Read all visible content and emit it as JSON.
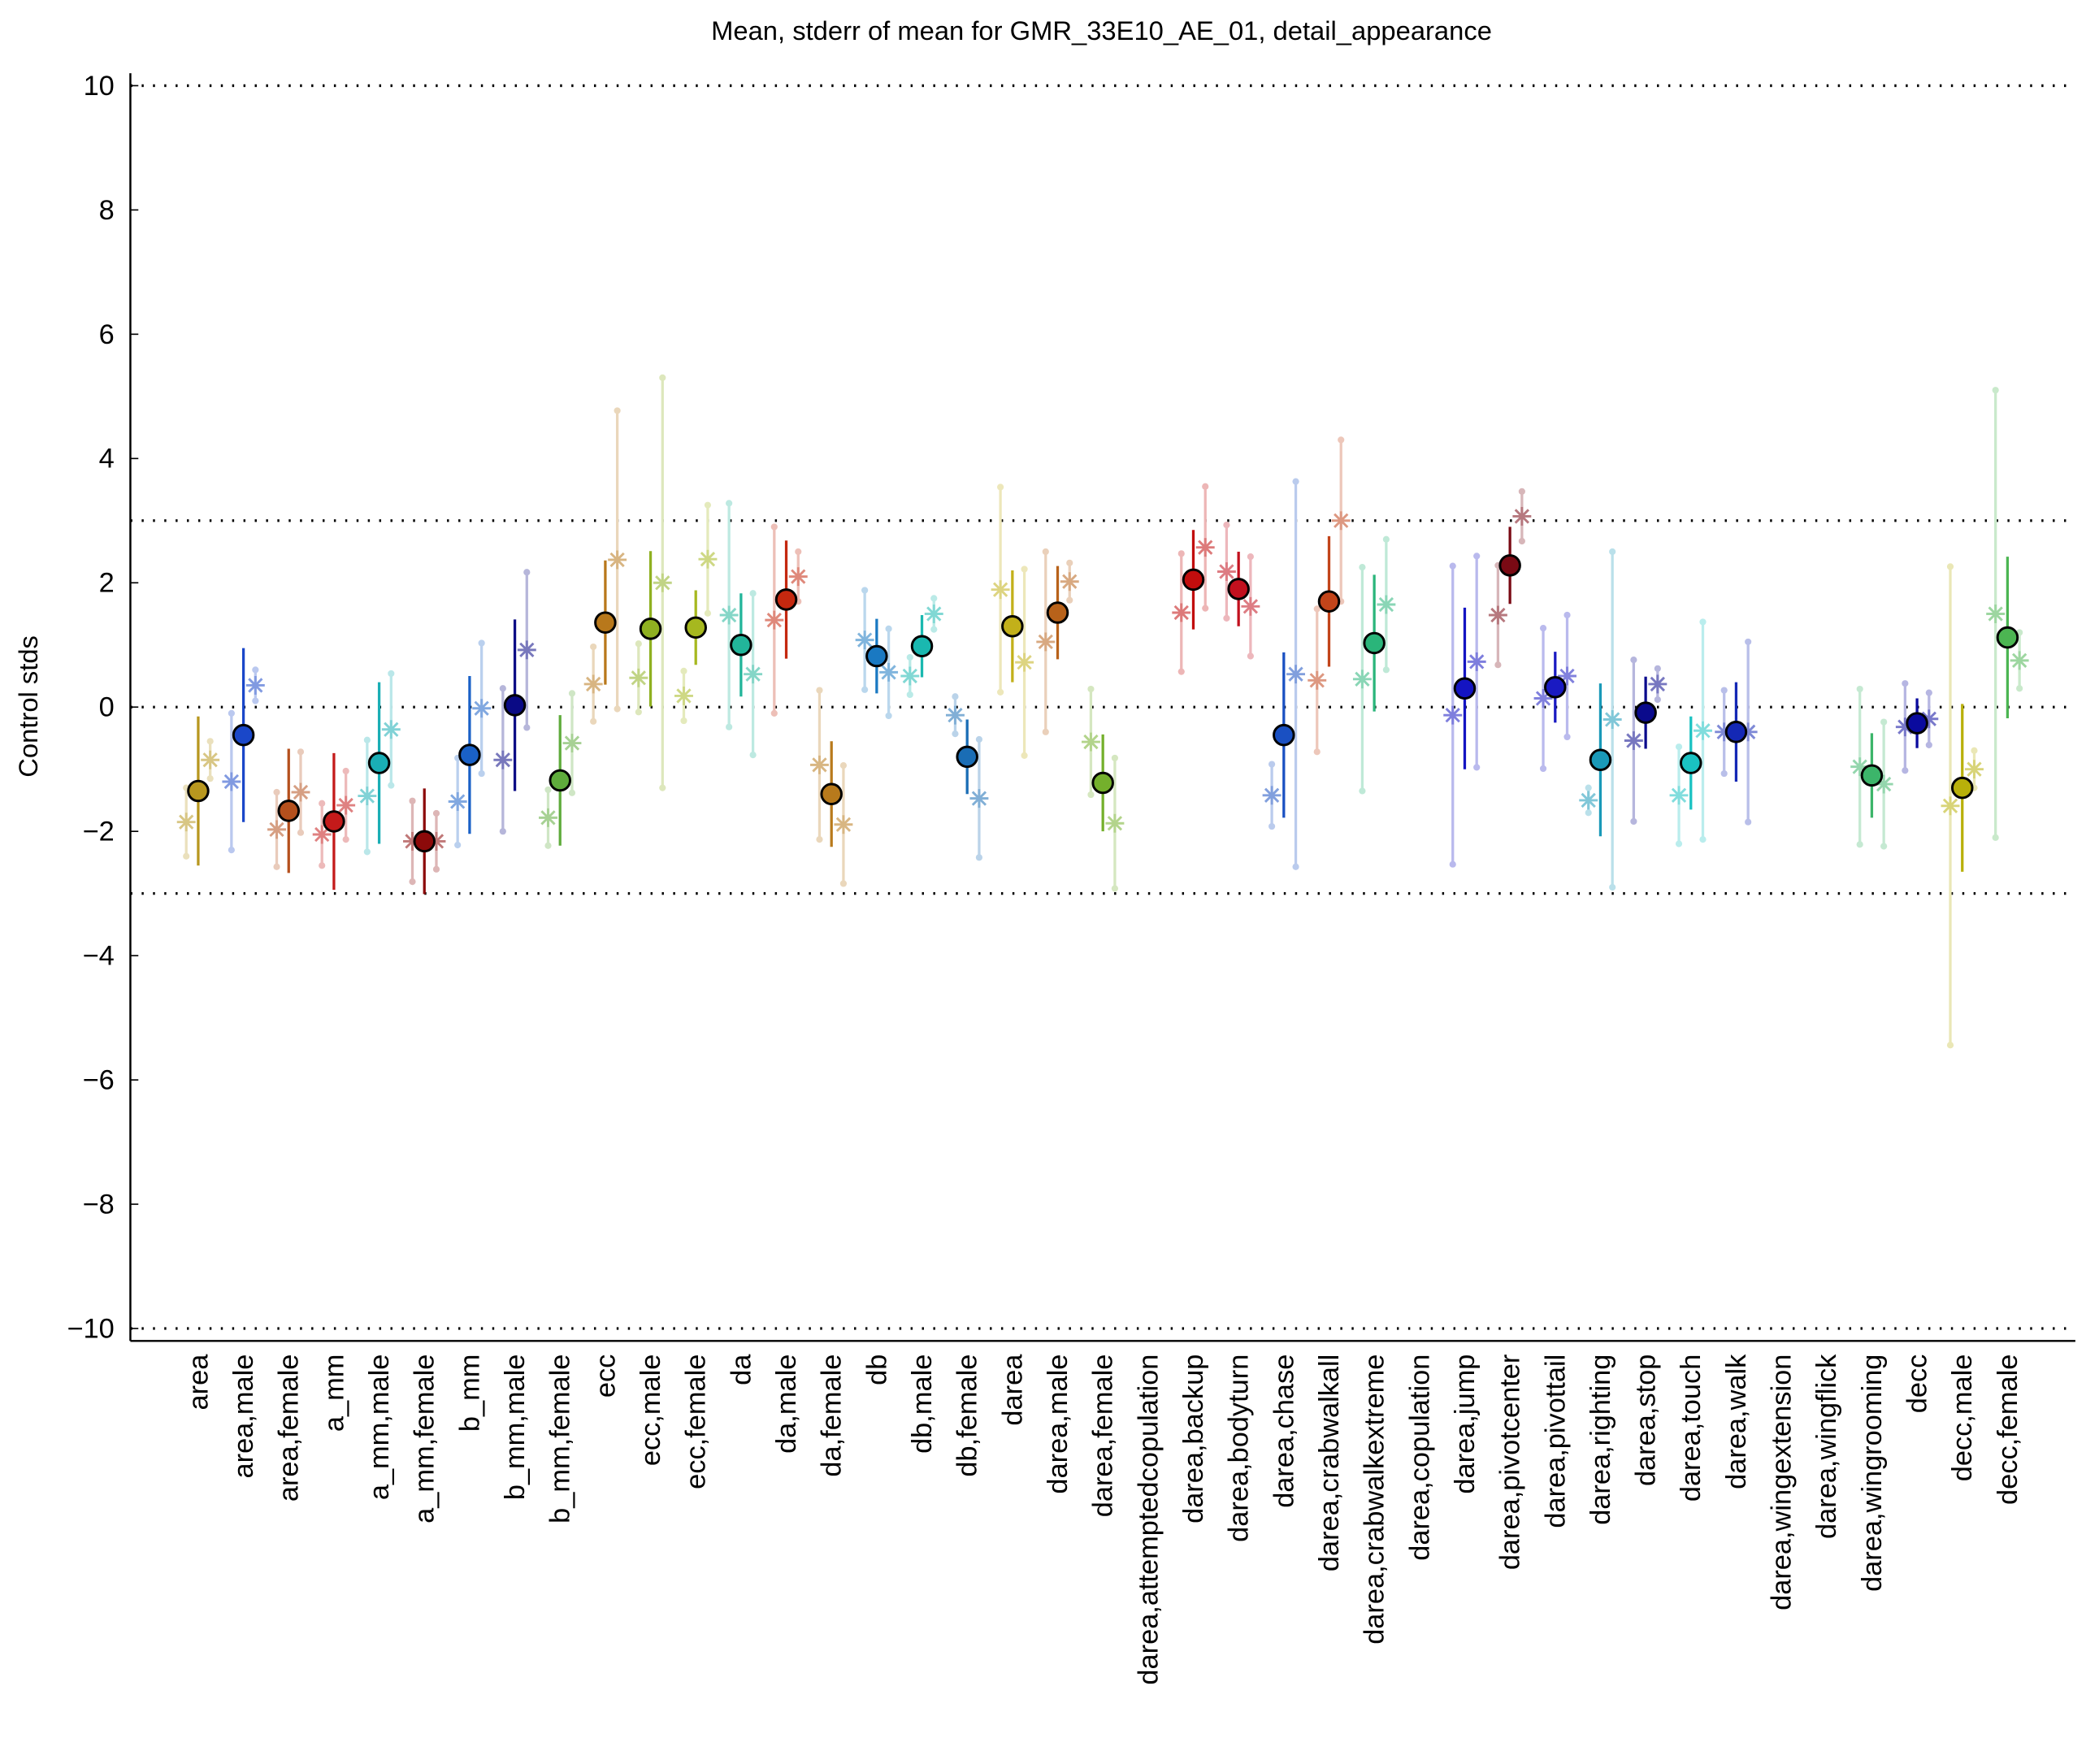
{
  "chart_data": {
    "type": "errorbar",
    "title": "Mean, stderr of mean for GMR_33E10_AE_01, detail_appearance",
    "ylabel": "Control stds",
    "categories": [
      "area",
      "area,male",
      "area,female",
      "a_mm",
      "a_mm,male",
      "a_mm,female",
      "b_mm",
      "b_mm,male",
      "b_mm,female",
      "ecc",
      "ecc,male",
      "ecc,female",
      "da",
      "da,male",
      "da,female",
      "db",
      "db,male",
      "db,female",
      "darea",
      "darea,male",
      "darea,female",
      "darea,attemptedcopulation",
      "darea,backup",
      "darea,bodyturn",
      "darea,chase",
      "darea,crabwalkall",
      "darea,crabwalkextreme",
      "darea,copulation",
      "darea,jump",
      "darea,pivotcenter",
      "darea,pivottail",
      "darea,righting",
      "darea,stop",
      "darea,touch",
      "darea,walk",
      "darea,wingextension",
      "darea,wingflick",
      "darea,wingrooming",
      "decc",
      "decc,male",
      "decc,female"
    ],
    "colors": [
      "#b8971f",
      "#1a47c9",
      "#b5501d",
      "#c41a1a",
      "#1aaeb5",
      "#8c0a0a",
      "#1a61c7",
      "#0a0a85",
      "#5fac3c",
      "#b8781b",
      "#8fb021",
      "#a6b81f",
      "#22b59a",
      "#c4280f",
      "#b87a1c",
      "#1a79c2",
      "#1ab8b0",
      "#1a6db5",
      "#c2b01a",
      "#b8621a",
      "#74b02c",
      "#909090",
      "#c20d0d",
      "#c2101e",
      "#1a50c2",
      "#c2441a",
      "#2ab57a",
      "#909090",
      "#1414c2",
      "#7a0a14",
      "#1a1ac2",
      "#1a99b8",
      "#0a0a8c",
      "#1ac2c2",
      "#1428b5",
      "#909090",
      "#909090",
      "#3cb56a",
      "#0a0a9e",
      "#b8b00a",
      "#4cb552"
    ],
    "values": [
      -1.35,
      -0.45,
      -1.67,
      -1.84,
      -0.9,
      -2.16,
      -0.77,
      0.03,
      -1.18,
      1.36,
      1.26,
      1.28,
      1.0,
      1.73,
      -1.4,
      0.82,
      0.98,
      -0.8,
      1.3,
      1.52,
      -1.22,
      null,
      2.05,
      1.9,
      -0.45,
      1.7,
      1.03,
      null,
      0.3,
      2.28,
      0.32,
      -0.85,
      -0.09,
      -0.9,
      -0.4,
      null,
      null,
      -1.1,
      -0.26,
      -1.3,
      1.12
    ],
    "errors": [
      1.2,
      1.4,
      1.0,
      1.1,
      1.3,
      0.85,
      1.27,
      1.38,
      1.05,
      1.0,
      1.25,
      0.6,
      0.83,
      0.95,
      0.85,
      0.6,
      0.5,
      0.6,
      0.9,
      0.75,
      0.78,
      null,
      0.8,
      0.6,
      1.33,
      1.05,
      1.1,
      null,
      1.3,
      0.62,
      0.57,
      1.23,
      0.58,
      0.75,
      0.8,
      null,
      null,
      0.68,
      0.4,
      1.35,
      1.3
    ],
    "left_values": [
      -1.85,
      -1.2,
      -1.97,
      -2.05,
      -1.43,
      -2.16,
      -1.52,
      -0.85,
      -1.78,
      0.37,
      0.47,
      0.18,
      1.48,
      1.4,
      -0.93,
      1.08,
      0.5,
      -0.13,
      1.89,
      1.05,
      -0.56,
      null,
      1.52,
      2.18,
      -1.42,
      0.43,
      0.45,
      null,
      -0.13,
      1.48,
      0.14,
      -1.5,
      -0.54,
      -1.42,
      -0.4,
      null,
      null,
      -0.96,
      -0.32,
      -1.59,
      1.5
    ],
    "left_errors": [
      0.55,
      1.1,
      0.6,
      0.5,
      0.9,
      0.65,
      0.7,
      1.15,
      0.45,
      0.6,
      0.55,
      0.4,
      1.8,
      1.5,
      1.2,
      0.8,
      0.3,
      0.3,
      1.65,
      1.45,
      0.85,
      null,
      0.95,
      0.75,
      0.5,
      1.15,
      1.8,
      null,
      2.4,
      0.8,
      1.13,
      0.2,
      1.3,
      0.78,
      0.67,
      null,
      null,
      1.25,
      0.7,
      3.85,
      3.6
    ],
    "right_values": [
      -0.85,
      0.35,
      -1.37,
      -1.58,
      -0.36,
      -2.16,
      -0.02,
      0.92,
      -0.58,
      2.37,
      2.0,
      2.38,
      0.53,
      2.1,
      -1.89,
      0.56,
      1.5,
      -1.47,
      0.72,
      2.02,
      -1.87,
      null,
      2.57,
      1.62,
      0.53,
      3.0,
      1.65,
      null,
      0.73,
      3.07,
      0.5,
      -0.2,
      0.37,
      -0.38,
      -0.4,
      null,
      null,
      -1.24,
      -0.19,
      -1.0,
      0.75
    ],
    "right_errors": [
      0.3,
      0.25,
      0.65,
      0.55,
      0.9,
      0.45,
      1.05,
      1.25,
      0.8,
      2.4,
      3.3,
      0.87,
      1.3,
      0.4,
      0.95,
      0.7,
      0.25,
      0.95,
      1.5,
      0.3,
      1.05,
      null,
      0.98,
      0.8,
      3.1,
      1.3,
      1.05,
      null,
      1.7,
      0.4,
      0.98,
      2.7,
      0.25,
      1.75,
      1.45,
      null,
      null,
      1.0,
      0.42,
      0.3,
      0.45
    ],
    "ylim": [
      -10.2,
      10.2
    ],
    "yticks": [
      {
        "value": -10,
        "label": "−10"
      },
      {
        "value": -8,
        "label": "−8"
      },
      {
        "value": -6,
        "label": "−6"
      },
      {
        "value": -4,
        "label": "−4"
      },
      {
        "value": -2,
        "label": "−2"
      },
      0,
      2,
      4,
      6,
      8,
      10
    ],
    "hlines": [
      -10,
      -3,
      0,
      3,
      10
    ]
  }
}
